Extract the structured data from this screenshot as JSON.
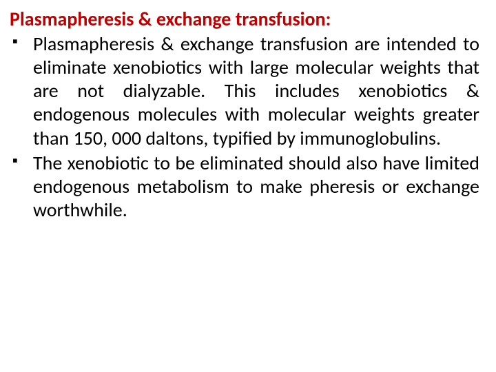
{
  "slide": {
    "heading": "Plasmapheresis & exchange transfusion:",
    "heading_color": "#c00000",
    "text_color": "#000000",
    "background_color": "#ffffff",
    "font_family": "Calibri",
    "heading_fontsize": 28,
    "body_fontsize": 28,
    "bullets": [
      "Plasmapheresis & exchange transfusion are intended to eliminate xenobiotics with large molecular weights that are not dialyzable. This includes xenobiotics & endogenous molecules with molecular weights greater than 150, 000 daltons, typified by immunoglobulins.",
      "The xenobiotic to be eliminated should also have limited endogenous metabolism to make pheresis or exchange worthwhile."
    ]
  }
}
